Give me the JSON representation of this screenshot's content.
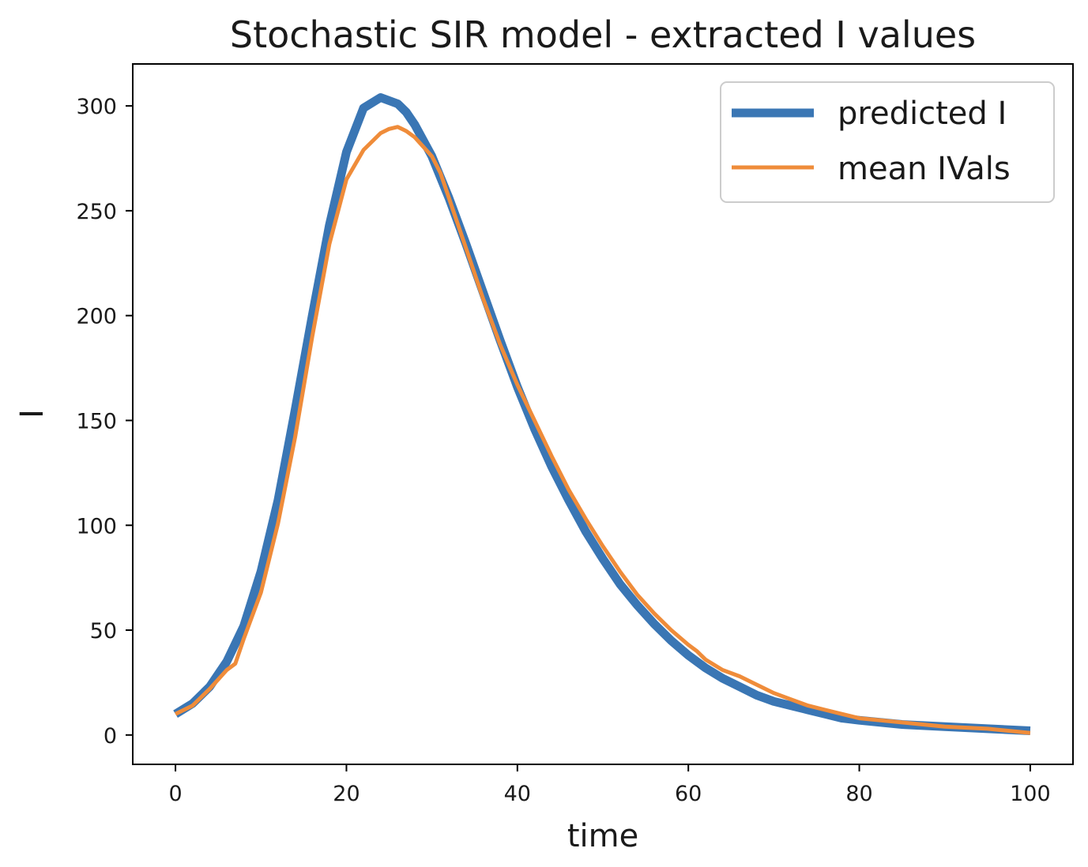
{
  "chart_data": {
    "type": "line",
    "title": "Stochastic SIR model - extracted I values",
    "xlabel": "time",
    "ylabel": "I",
    "xlim": [
      -5,
      105
    ],
    "ylim": [
      -14,
      320
    ],
    "xticks": [
      0,
      20,
      40,
      60,
      80,
      100
    ],
    "yticks": [
      0,
      50,
      100,
      150,
      200,
      250,
      300
    ],
    "grid": false,
    "legend_position": "upper right",
    "series": [
      {
        "name": "predicted I",
        "color": "#3a76b4",
        "x": [
          0,
          2,
          4,
          6,
          8,
          10,
          12,
          14,
          16,
          18,
          20,
          22,
          24,
          26,
          27,
          28,
          30,
          32,
          34,
          36,
          38,
          40,
          42,
          44,
          46,
          48,
          50,
          52,
          54,
          56,
          58,
          60,
          62,
          64,
          66,
          68,
          70,
          72,
          74,
          76,
          78,
          80,
          85,
          90,
          95,
          100
        ],
        "y": [
          10,
          15,
          23,
          35,
          52,
          78,
          112,
          155,
          200,
          243,
          278,
          299,
          304,
          301,
          297,
          291,
          276,
          256,
          234,
          211,
          188,
          166,
          146,
          128,
          112,
          97,
          84,
          72,
          62,
          53,
          45,
          38,
          32,
          27,
          23,
          19,
          16,
          14,
          12,
          10,
          8,
          7,
          5,
          4,
          3,
          2
        ]
      },
      {
        "name": "mean IVals",
        "color": "#ef8c3a",
        "x": [
          0,
          2,
          4,
          6,
          7,
          8,
          10,
          12,
          14,
          16,
          18,
          20,
          22,
          24,
          25,
          26,
          27,
          28,
          30,
          31,
          32,
          34,
          36,
          38,
          40,
          42,
          44,
          46,
          48,
          50,
          52,
          54,
          56,
          58,
          60,
          61,
          62,
          64,
          66,
          68,
          70,
          72,
          74,
          76,
          78,
          80,
          85,
          90,
          95,
          100
        ],
        "y": [
          10,
          14,
          22,
          31,
          34,
          46,
          68,
          101,
          142,
          190,
          234,
          265,
          279,
          287,
          289,
          290,
          288,
          285,
          276,
          268,
          256,
          232,
          208,
          186,
          167,
          150,
          133,
          117,
          103,
          90,
          78,
          67,
          58,
          50,
          43,
          40,
          36,
          31,
          28,
          24,
          20,
          17,
          14,
          12,
          10,
          8,
          6,
          4,
          3,
          1
        ]
      }
    ]
  }
}
